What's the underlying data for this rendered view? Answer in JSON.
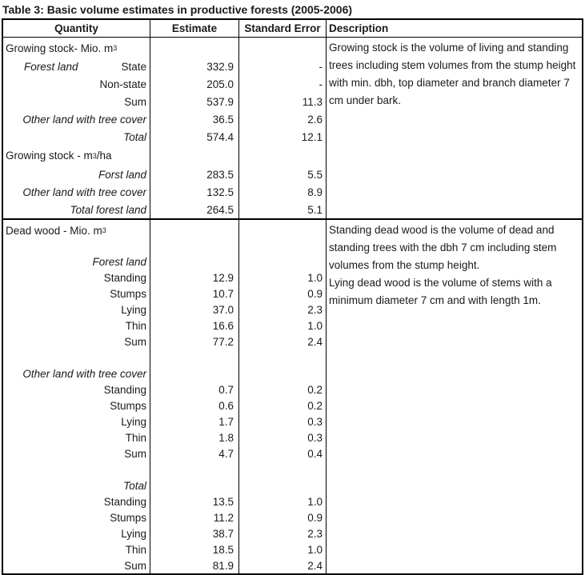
{
  "title": "Table 3: Basic volume estimates in productive forests (2005-2006)",
  "header": {
    "quantity": "Quantity",
    "estimate": "Estimate",
    "std_error": "Standard Error",
    "description": "Description"
  },
  "sections": [
    {
      "description": [
        "Growing stock is the volume of living and standing trees including stem volumes from the stump height with min. dbh, top diameter and branch diameter 7 cm under bark."
      ],
      "rows": [
        {
          "kind": "unit",
          "pre": "Growing stock- Mio. m",
          "sup": "3",
          "post": ""
        },
        {
          "kind": "data",
          "left_label": "Forest land",
          "label": "State",
          "estimate": "332.9",
          "std_error": "-"
        },
        {
          "kind": "data",
          "label": "Non-state",
          "estimate": "205.0",
          "std_error": "-"
        },
        {
          "kind": "data",
          "label": "Sum",
          "estimate": "537.9",
          "std_error": "11.3"
        },
        {
          "kind": "data",
          "label": "Other land with tree cover",
          "italic": true,
          "estimate": "36.5",
          "std_error": "2.6"
        },
        {
          "kind": "data",
          "label": "Total",
          "italic": true,
          "estimate": "574.4",
          "std_error": "12.1"
        },
        {
          "kind": "unit",
          "pre": "Growing stock - m",
          "sup": "3",
          "post": "/ha"
        },
        {
          "kind": "data",
          "label": "Forst land",
          "italic": true,
          "estimate": "283.5",
          "std_error": "5.5"
        },
        {
          "kind": "data",
          "label": "Other land with tree cover",
          "italic": true,
          "estimate": "132.5",
          "std_error": "8.9"
        },
        {
          "kind": "data",
          "label": "Total forest land",
          "italic": true,
          "estimate": "264.5",
          "std_error": "5.1"
        }
      ]
    },
    {
      "description": [
        "Standing dead wood is the volume of dead and standing trees with the dbh 7 cm including stem volumes from the stump height.",
        "Lying dead wood is the volume of stems with a minimum diameter 7 cm and with length 1m."
      ],
      "rows": [
        {
          "kind": "unit",
          "pre": "Dead wood - Mio. m",
          "sup": "3",
          "post": ""
        },
        {
          "kind": "blank_sm"
        },
        {
          "kind": "data",
          "label": "Forest land",
          "italic": true
        },
        {
          "kind": "data",
          "label": "Standing",
          "estimate": "12.9",
          "std_error": "1.0"
        },
        {
          "kind": "data",
          "label": "Stumps",
          "estimate": "10.7",
          "std_error": "0.9"
        },
        {
          "kind": "data",
          "label": "Lying",
          "estimate": "37.0",
          "std_error": "2.3"
        },
        {
          "kind": "data",
          "label": "Thin",
          "estimate": "16.6",
          "std_error": "1.0"
        },
        {
          "kind": "data",
          "label": "Sum",
          "estimate": "77.2",
          "std_error": "2.4"
        },
        {
          "kind": "blank"
        },
        {
          "kind": "data",
          "label": "Other land with tree cover",
          "italic": true
        },
        {
          "kind": "data",
          "label": "Standing",
          "estimate": "0.7",
          "std_error": "0.2"
        },
        {
          "kind": "data",
          "label": "Stumps",
          "estimate": "0.6",
          "std_error": "0.2"
        },
        {
          "kind": "data",
          "label": "Lying",
          "estimate": "1.7",
          "std_error": "0.3"
        },
        {
          "kind": "data",
          "label": "Thin",
          "estimate": "1.8",
          "std_error": "0.3"
        },
        {
          "kind": "data",
          "label": "Sum",
          "estimate": "4.7",
          "std_error": "0.4"
        },
        {
          "kind": "blank"
        },
        {
          "kind": "data",
          "label": "Total",
          "italic": true
        },
        {
          "kind": "data",
          "label": "Standing",
          "estimate": "13.5",
          "std_error": "1.0"
        },
        {
          "kind": "data",
          "label": "Stumps",
          "estimate": "11.2",
          "std_error": "0.9"
        },
        {
          "kind": "data",
          "label": "Lying",
          "estimate": "38.7",
          "std_error": "2.3"
        },
        {
          "kind": "data",
          "label": "Thin",
          "estimate": "18.5",
          "std_error": "1.0"
        },
        {
          "kind": "data",
          "label": "Sum",
          "estimate": "81.9",
          "std_error": "2.4"
        }
      ]
    }
  ]
}
